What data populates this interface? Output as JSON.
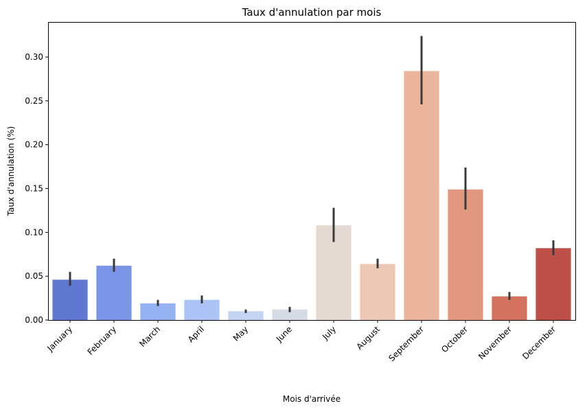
{
  "chart_data": {
    "type": "bar",
    "title": "Taux d'annulation par mois",
    "xlabel": "Mois d'arrivée",
    "ylabel": "Taux d'annulation (%)",
    "ylim": [
      0,
      0.34
    ],
    "yticks": [
      "0.00",
      "0.05",
      "0.10",
      "0.15",
      "0.20",
      "0.25",
      "0.30"
    ],
    "ytick_values": [
      0,
      0.05,
      0.1,
      0.15,
      0.2,
      0.25,
      0.3
    ],
    "grid": false,
    "legend": "none",
    "categories": [
      "January",
      "February",
      "March",
      "April",
      "May",
      "June",
      "July",
      "August",
      "September",
      "October",
      "November",
      "December"
    ],
    "values": [
      0.046,
      0.062,
      0.019,
      0.023,
      0.01,
      0.012,
      0.108,
      0.064,
      0.284,
      0.149,
      0.027,
      0.082
    ],
    "error_low": [
      0.039,
      0.055,
      0.016,
      0.019,
      0.008,
      0.009,
      0.089,
      0.059,
      0.246,
      0.126,
      0.023,
      0.074
    ],
    "error_high": [
      0.055,
      0.07,
      0.023,
      0.028,
      0.012,
      0.015,
      0.128,
      0.07,
      0.324,
      0.174,
      0.032,
      0.091
    ],
    "colors": [
      "#6078d0",
      "#7b95e6",
      "#94b1f1",
      "#abc3f5",
      "#c3d3f1",
      "#d5dbe5",
      "#e4d9d3",
      "#ecc8b5",
      "#ebb49c",
      "#e29880",
      "#d3735f",
      "#bd5049"
    ],
    "errorbar_color": "#3a3a3a"
  }
}
